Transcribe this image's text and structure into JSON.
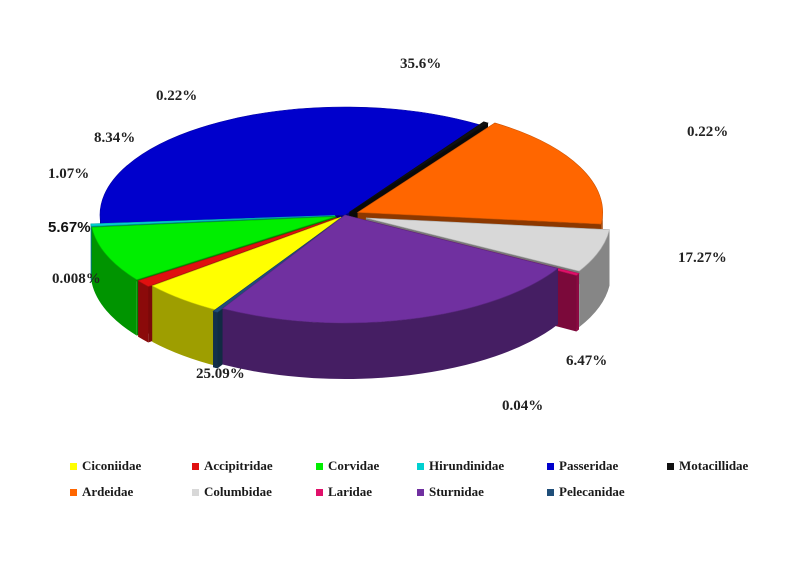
{
  "chart_data": {
    "type": "pie",
    "title": "",
    "categories": [
      "Ciconiidae",
      "Accipitridae",
      "Corvidae",
      "Hirundinidae",
      "Passeridae",
      "Motacillidae",
      "Ardeidae",
      "Columbidae",
      "Laridae",
      "Sturnidae",
      "Pelecanidae"
    ],
    "values": [
      5.67,
      1.07,
      8.34,
      0.22,
      35.6,
      0.22,
      17.27,
      6.47,
      0.04,
      25.09,
      0.008
    ],
    "labels": [
      "5.67%",
      "1.07%",
      "8.34%",
      "0.22%",
      "35.6%",
      "0.22%",
      "17.27%",
      "6.47%",
      "0.04%",
      "25.09%",
      "0.008%"
    ],
    "colors": [
      "#ffff00",
      "#e01010",
      "#00ee00",
      "#00d0d0",
      "#0000cc",
      "#111111",
      "#ff6600",
      "#d8d8d8",
      "#e0106a",
      "#7030a0",
      "#1f4e79"
    ],
    "legend_position": "bottom",
    "style": "3d-exploded"
  }
}
